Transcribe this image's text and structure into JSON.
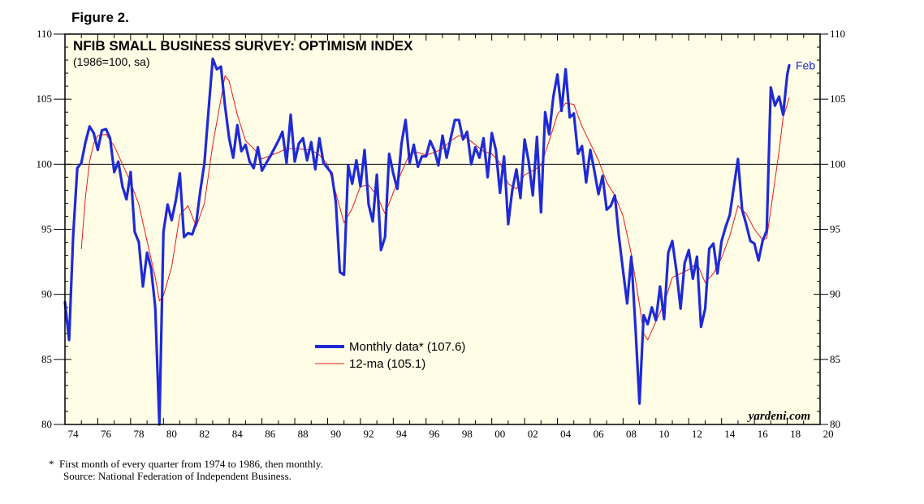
{
  "figure_label": "Figure 2.",
  "footnote": {
    "line1": "*  First month of every quarter from 1974 to 1986, then monthly.",
    "line2": "Source: National Federation of Independent Business."
  },
  "colors": {
    "plot_background": "#fffde6",
    "monthly": "#1f2ad6",
    "moving_average": "#e8191c",
    "axis": "#000000"
  },
  "chart_data": {
    "type": "line",
    "title": "NFIB SMALL BUSINESS SURVEY: OPTIMISM INDEX",
    "subtitle": "(1986=100, sa)",
    "xlabel": "",
    "ylabel": "",
    "xlim": [
      1974.0,
      2020.0
    ],
    "ylim": [
      80,
      110
    ],
    "x_ticks": [
      74,
      76,
      78,
      80,
      82,
      84,
      86,
      88,
      90,
      92,
      94,
      96,
      98,
      0,
      2,
      4,
      6,
      8,
      10,
      12,
      14,
      16,
      18,
      20
    ],
    "x_tick_labels": [
      "74",
      "76",
      "78",
      "80",
      "82",
      "84",
      "86",
      "88",
      "90",
      "92",
      "94",
      "96",
      "98",
      "00",
      "02",
      "04",
      "06",
      "08",
      "10",
      "12",
      "14",
      "16",
      "18",
      "20"
    ],
    "y_ticks": [
      80,
      85,
      90,
      95,
      100,
      105,
      110
    ],
    "reference_line": 100,
    "end_label": "Feb",
    "brand": "yardeni.com",
    "legend_position": "center",
    "series": [
      {
        "name": "Monthly data* (107.6)",
        "style": "thick",
        "points": [
          [
            1974.0,
            89.4
          ],
          [
            1974.25,
            86.5
          ],
          [
            1974.5,
            94.5
          ],
          [
            1974.75,
            99.7
          ],
          [
            1975.0,
            100.1
          ],
          [
            1975.25,
            101.7
          ],
          [
            1975.5,
            102.9
          ],
          [
            1975.75,
            102.4
          ],
          [
            1976.0,
            101.1
          ],
          [
            1976.25,
            102.6
          ],
          [
            1976.5,
            102.7
          ],
          [
            1976.75,
            102.0
          ],
          [
            1977.0,
            99.4
          ],
          [
            1977.25,
            100.2
          ],
          [
            1977.5,
            98.3
          ],
          [
            1977.75,
            97.3
          ],
          [
            1978.0,
            99.4
          ],
          [
            1978.25,
            94.8
          ],
          [
            1978.5,
            94.0
          ],
          [
            1978.75,
            90.6
          ],
          [
            1979.0,
            93.2
          ],
          [
            1979.25,
            92.0
          ],
          [
            1979.5,
            89.0
          ],
          [
            1979.75,
            80.0
          ],
          [
            1980.0,
            94.8
          ],
          [
            1980.25,
            96.9
          ],
          [
            1980.5,
            95.7
          ],
          [
            1980.75,
            97.2
          ],
          [
            1981.0,
            99.3
          ],
          [
            1981.25,
            94.4
          ],
          [
            1981.5,
            94.7
          ],
          [
            1981.75,
            94.6
          ],
          [
            1982.0,
            95.5
          ],
          [
            1982.25,
            98.0
          ],
          [
            1982.5,
            100.1
          ],
          [
            1982.75,
            104.2
          ],
          [
            1983.0,
            108.1
          ],
          [
            1983.25,
            107.3
          ],
          [
            1983.5,
            107.5
          ],
          [
            1983.75,
            104.5
          ],
          [
            1984.0,
            102.0
          ],
          [
            1984.25,
            100.5
          ],
          [
            1984.5,
            103.0
          ],
          [
            1984.75,
            101.0
          ],
          [
            1985.0,
            101.5
          ],
          [
            1985.25,
            100.2
          ],
          [
            1985.5,
            99.7
          ],
          [
            1985.75,
            101.3
          ],
          [
            1986.0,
            99.5
          ],
          [
            1986.5,
            100.6
          ],
          [
            1987.0,
            101.8
          ],
          [
            1987.25,
            102.5
          ],
          [
            1987.5,
            100.1
          ],
          [
            1987.75,
            103.8
          ],
          [
            1988.0,
            100.2
          ],
          [
            1988.25,
            101.6
          ],
          [
            1988.5,
            102.0
          ],
          [
            1988.75,
            100.3
          ],
          [
            1989.0,
            101.7
          ],
          [
            1989.25,
            99.6
          ],
          [
            1989.5,
            102.0
          ],
          [
            1989.75,
            100.1
          ],
          [
            1990.0,
            99.7
          ],
          [
            1990.25,
            99.3
          ],
          [
            1990.5,
            97.1
          ],
          [
            1990.75,
            91.7
          ],
          [
            1991.0,
            91.5
          ],
          [
            1991.25,
            99.9
          ],
          [
            1991.5,
            98.5
          ],
          [
            1991.75,
            100.3
          ],
          [
            1992.0,
            98.3
          ],
          [
            1992.25,
            101.1
          ],
          [
            1992.5,
            96.9
          ],
          [
            1992.75,
            95.6
          ],
          [
            1993.0,
            99.2
          ],
          [
            1993.25,
            93.4
          ],
          [
            1993.5,
            94.4
          ],
          [
            1993.75,
            100.8
          ],
          [
            1994.0,
            99.3
          ],
          [
            1994.25,
            98.1
          ],
          [
            1994.5,
            101.6
          ],
          [
            1994.75,
            103.4
          ],
          [
            1995.0,
            100.1
          ],
          [
            1995.25,
            101.5
          ],
          [
            1995.5,
            99.8
          ],
          [
            1995.75,
            100.6
          ],
          [
            1996.0,
            100.6
          ],
          [
            1996.25,
            101.8
          ],
          [
            1996.5,
            101.1
          ],
          [
            1996.75,
            99.9
          ],
          [
            1997.0,
            102.2
          ],
          [
            1997.25,
            100.5
          ],
          [
            1997.5,
            102.0
          ],
          [
            1997.75,
            103.4
          ],
          [
            1998.0,
            103.4
          ],
          [
            1998.25,
            101.9
          ],
          [
            1998.5,
            102.5
          ],
          [
            1998.75,
            100.0
          ],
          [
            1999.0,
            101.3
          ],
          [
            1999.25,
            100.5
          ],
          [
            1999.5,
            102.0
          ],
          [
            1999.75,
            99.0
          ],
          [
            2000.0,
            102.4
          ],
          [
            2000.25,
            101.1
          ],
          [
            2000.5,
            97.8
          ],
          [
            2000.75,
            100.6
          ],
          [
            2001.0,
            95.4
          ],
          [
            2001.25,
            98.0
          ],
          [
            2001.5,
            99.6
          ],
          [
            2001.75,
            97.4
          ],
          [
            2002.0,
            101.9
          ],
          [
            2002.25,
            100.2
          ],
          [
            2002.5,
            97.6
          ],
          [
            2002.75,
            102.1
          ],
          [
            2003.0,
            96.3
          ],
          [
            2003.25,
            104.0
          ],
          [
            2003.5,
            102.3
          ],
          [
            2003.75,
            105.2
          ],
          [
            2004.0,
            106.9
          ],
          [
            2004.25,
            104.1
          ],
          [
            2004.5,
            107.3
          ],
          [
            2004.75,
            103.6
          ],
          [
            2005.0,
            103.9
          ],
          [
            2005.25,
            100.8
          ],
          [
            2005.5,
            101.4
          ],
          [
            2005.75,
            98.6
          ],
          [
            2006.0,
            101.1
          ],
          [
            2006.25,
            99.5
          ],
          [
            2006.5,
            97.7
          ],
          [
            2006.75,
            99.1
          ],
          [
            2007.0,
            96.5
          ],
          [
            2007.25,
            96.8
          ],
          [
            2007.5,
            97.6
          ],
          [
            2007.75,
            94.4
          ],
          [
            2008.0,
            91.8
          ],
          [
            2008.25,
            89.3
          ],
          [
            2008.5,
            92.9
          ],
          [
            2008.75,
            87.5
          ],
          [
            2009.0,
            81.6
          ],
          [
            2009.25,
            88.4
          ],
          [
            2009.5,
            87.7
          ],
          [
            2009.75,
            89.0
          ],
          [
            2010.0,
            88.0
          ],
          [
            2010.25,
            90.6
          ],
          [
            2010.5,
            88.1
          ],
          [
            2010.75,
            93.2
          ],
          [
            2011.0,
            94.1
          ],
          [
            2011.25,
            91.8
          ],
          [
            2011.5,
            88.9
          ],
          [
            2011.75,
            92.4
          ],
          [
            2012.0,
            93.4
          ],
          [
            2012.25,
            91.2
          ],
          [
            2012.5,
            92.9
          ],
          [
            2012.75,
            87.5
          ],
          [
            2013.0,
            88.9
          ],
          [
            2013.25,
            93.5
          ],
          [
            2013.5,
            93.9
          ],
          [
            2013.75,
            91.6
          ],
          [
            2014.0,
            94.1
          ],
          [
            2014.25,
            95.2
          ],
          [
            2014.5,
            96.1
          ],
          [
            2014.75,
            98.3
          ],
          [
            2015.0,
            100.4
          ],
          [
            2015.25,
            96.5
          ],
          [
            2015.5,
            95.4
          ],
          [
            2015.75,
            94.1
          ],
          [
            2016.0,
            93.9
          ],
          [
            2016.25,
            92.6
          ],
          [
            2016.5,
            94.1
          ],
          [
            2016.75,
            94.9
          ],
          [
            2017.0,
            105.9
          ],
          [
            2017.25,
            104.5
          ],
          [
            2017.5,
            105.2
          ],
          [
            2017.75,
            103.8
          ],
          [
            2018.0,
            106.9
          ],
          [
            2018.12,
            107.6
          ]
        ]
      },
      {
        "name": "12-ma (105.1)",
        "style": "thin",
        "points": [
          [
            1975.0,
            93.5
          ],
          [
            1975.25,
            97.5
          ],
          [
            1975.5,
            100.2
          ],
          [
            1975.75,
            101.6
          ],
          [
            1976.0,
            102.2
          ],
          [
            1976.5,
            102.3
          ],
          [
            1977.0,
            101.4
          ],
          [
            1977.5,
            100.0
          ],
          [
            1978.0,
            98.6
          ],
          [
            1978.5,
            96.9
          ],
          [
            1979.0,
            94.1
          ],
          [
            1979.5,
            91.3
          ],
          [
            1979.75,
            89.5
          ],
          [
            1980.0,
            89.9
          ],
          [
            1980.5,
            92.1
          ],
          [
            1981.0,
            96.1
          ],
          [
            1981.5,
            96.8
          ],
          [
            1982.0,
            95.2
          ],
          [
            1982.5,
            97.0
          ],
          [
            1983.0,
            101.5
          ],
          [
            1983.5,
            105.0
          ],
          [
            1983.75,
            106.8
          ],
          [
            1984.0,
            106.4
          ],
          [
            1984.5,
            103.8
          ],
          [
            1985.0,
            101.8
          ],
          [
            1985.5,
            101.2
          ],
          [
            1986.0,
            100.4
          ],
          [
            1987.0,
            100.9
          ],
          [
            1987.5,
            101.2
          ],
          [
            1988.0,
            101.2
          ],
          [
            1989.0,
            101.1
          ],
          [
            1989.5,
            100.7
          ],
          [
            1990.0,
            100.0
          ],
          [
            1990.5,
            97.8
          ],
          [
            1991.0,
            95.5
          ],
          [
            1991.5,
            96.6
          ],
          [
            1992.0,
            98.3
          ],
          [
            1992.5,
            98.4
          ],
          [
            1993.0,
            97.6
          ],
          [
            1993.5,
            96.2
          ],
          [
            1994.0,
            97.8
          ],
          [
            1994.5,
            99.4
          ],
          [
            1995.0,
            100.8
          ],
          [
            1995.5,
            100.9
          ],
          [
            1996.0,
            100.7
          ],
          [
            1996.5,
            100.9
          ],
          [
            1997.0,
            101.2
          ],
          [
            1997.5,
            101.8
          ],
          [
            1998.0,
            102.2
          ],
          [
            1998.5,
            102.0
          ],
          [
            1999.0,
            101.5
          ],
          [
            1999.5,
            101.0
          ],
          [
            2000.0,
            100.8
          ],
          [
            2000.5,
            100.1
          ],
          [
            2001.0,
            98.5
          ],
          [
            2001.5,
            98.1
          ],
          [
            2002.0,
            99.2
          ],
          [
            2002.5,
            99.5
          ],
          [
            2003.0,
            99.9
          ],
          [
            2003.5,
            101.8
          ],
          [
            2004.0,
            103.8
          ],
          [
            2004.5,
            104.7
          ],
          [
            2005.0,
            104.6
          ],
          [
            2005.5,
            102.9
          ],
          [
            2006.0,
            101.6
          ],
          [
            2006.5,
            100.3
          ],
          [
            2007.0,
            98.6
          ],
          [
            2007.5,
            97.6
          ],
          [
            2008.0,
            96.0
          ],
          [
            2008.5,
            93.1
          ],
          [
            2009.0,
            89.2
          ],
          [
            2009.25,
            87.0
          ],
          [
            2009.5,
            86.5
          ],
          [
            2010.0,
            87.9
          ],
          [
            2010.5,
            89.3
          ],
          [
            2011.0,
            91.3
          ],
          [
            2011.5,
            91.6
          ],
          [
            2012.0,
            91.9
          ],
          [
            2012.5,
            92.4
          ],
          [
            2013.0,
            90.9
          ],
          [
            2013.5,
            91.6
          ],
          [
            2014.0,
            92.8
          ],
          [
            2014.5,
            94.5
          ],
          [
            2015.0,
            96.8
          ],
          [
            2015.5,
            96.2
          ],
          [
            2016.0,
            95.0
          ],
          [
            2016.5,
            94.2
          ],
          [
            2016.75,
            94.3
          ],
          [
            2017.0,
            96.5
          ],
          [
            2017.5,
            101.0
          ],
          [
            2017.75,
            103.6
          ],
          [
            2018.0,
            104.6
          ],
          [
            2018.12,
            105.1
          ]
        ]
      }
    ]
  }
}
